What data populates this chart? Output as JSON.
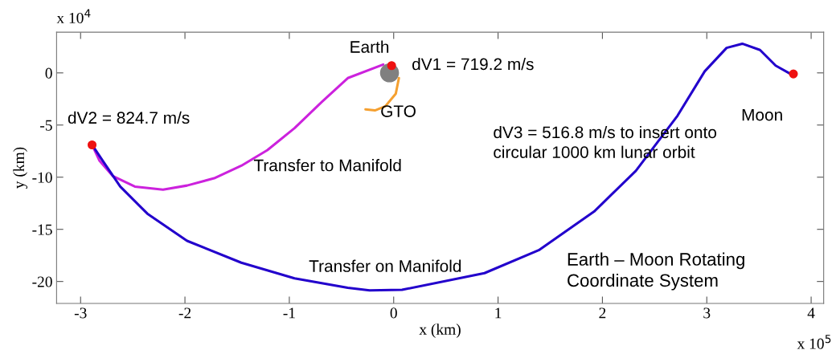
{
  "chart_data": {
    "type": "line",
    "xlabel": "x (km)",
    "ylabel": "y (km)",
    "xlim": [
      -3.23,
      4.12
    ],
    "ylim": [
      -22.1,
      3.9
    ],
    "xticks": [
      -3,
      -2,
      -1,
      0,
      1,
      2,
      3,
      4
    ],
    "yticks": [
      -20,
      -15,
      -10,
      -5,
      0
    ],
    "grid": false,
    "line_style": "solid",
    "series": [
      {
        "type": "line",
        "color": "#cc22dd",
        "x": [
          -0.1,
          -0.44,
          -0.69,
          -0.95,
          -1.21,
          -1.46,
          -1.72,
          -1.98,
          -2.21,
          -2.48,
          -2.69,
          -2.82,
          -2.89
        ],
        "values": [
          0.8,
          -0.5,
          -2.8,
          -5.3,
          -7.4,
          -8.9,
          -10.1,
          -10.8,
          -11.2,
          -10.9,
          -9.9,
          -8.4,
          -6.9
        ]
      },
      {
        "type": "line",
        "color": "#2200cc",
        "x": [
          -2.89,
          -2.79,
          -2.62,
          -2.36,
          -1.98,
          -1.46,
          -0.95,
          -0.44,
          -0.23,
          0.08,
          0.87,
          1.39,
          1.92,
          2.32,
          2.72,
          2.98,
          3.19,
          3.34,
          3.51,
          3.66,
          3.82
        ],
        "values": [
          -6.9,
          -8.4,
          -10.9,
          -13.5,
          -16.1,
          -18.2,
          -19.7,
          -20.6,
          -20.85,
          -20.8,
          -19.2,
          -17.0,
          -13.3,
          -9.4,
          -4.1,
          0.15,
          2.4,
          2.8,
          2.2,
          0.7,
          -0.2
        ]
      },
      {
        "type": "line",
        "color": "#f5a030",
        "x": [
          0.05,
          0.02,
          -0.08,
          -0.18,
          -0.27
        ],
        "values": [
          -0.5,
          -2.0,
          -3.2,
          -3.6,
          -3.5
        ]
      },
      {
        "type": "scatter",
        "marker": "circle",
        "color": "#808080",
        "x": [
          -0.04
        ],
        "values": [
          0
        ]
      },
      {
        "type": "scatter",
        "marker": "circle",
        "color": "#ee1111",
        "x": [
          -0.02,
          -2.89,
          3.83
        ],
        "values": [
          0.7,
          -6.9,
          -0.1
        ]
      }
    ],
    "annotations": [
      {
        "text": "Earth",
        "x": -0.04,
        "y": 0
      },
      {
        "text": "dV1 = 719.2 m/s",
        "x": -0.02,
        "y": 0.7
      },
      {
        "text": "GTO",
        "x": -0.18,
        "y": -3.6
      },
      {
        "text": "dV2 = 824.7 m/s",
        "x": -2.89,
        "y": -6.9
      },
      {
        "text": "Transfer to Manifold",
        "x": -1.21,
        "y": -7.4
      },
      {
        "text": "Transfer on Manifold",
        "x": 0.08,
        "y": -20.8
      },
      {
        "text": "Moon",
        "x": 3.83,
        "y": -0.1
      },
      "dV3 = 516.8 m/s to insert onto\ncircular 1000 km lunar orbit",
      "Earth – Moon Rotating\nCoordinate System",
      "x 10$^{4}$",
      "x 10$^{5}$"
    ]
  }
}
